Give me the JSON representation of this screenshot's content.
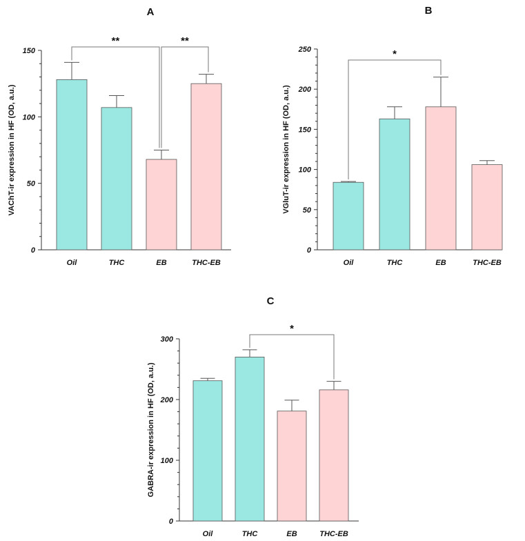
{
  "colors": {
    "teal": "#9be8e2",
    "pink": "#ffd4d4",
    "axis": "#333333"
  },
  "chart_data": [
    {
      "type": "bar",
      "panel_label": "A",
      "ylabel": "VAChT-ir expression in HF (OD, a.u.)",
      "categories": [
        "Oil",
        "THC",
        "EB",
        "THC-EB"
      ],
      "values": [
        128,
        107,
        68,
        125
      ],
      "errors": [
        13,
        9,
        7,
        7
      ],
      "bar_colors": [
        "teal",
        "teal",
        "pink",
        "pink"
      ],
      "ylim": [
        0,
        150
      ],
      "yticks": [
        0,
        50,
        100,
        150
      ],
      "significance": [
        {
          "from": 0,
          "to": 2,
          "label": "**"
        },
        {
          "from": 2,
          "to": 3,
          "label": "**"
        }
      ]
    },
    {
      "type": "bar",
      "panel_label": "B",
      "ylabel": "VGluT-ir expression in HF (OD, a.u.)",
      "categories": [
        "Oil",
        "THC",
        "EB",
        "THC-EB"
      ],
      "values": [
        84,
        163,
        178,
        106
      ],
      "errors": [
        1,
        15,
        37,
        5
      ],
      "bar_colors": [
        "teal",
        "teal",
        "pink",
        "pink"
      ],
      "ylim": [
        0,
        250
      ],
      "yticks": [
        0,
        50,
        100,
        150,
        200,
        250
      ],
      "significance": [
        {
          "from": 0,
          "to": 2,
          "label": "*"
        }
      ]
    },
    {
      "type": "bar",
      "panel_label": "C",
      "ylabel": "GABRA-ir expression in HF (OD, a.u.)",
      "categories": [
        "Oil",
        "THC",
        "EB",
        "THC-EB"
      ],
      "values": [
        231,
        270,
        181,
        216
      ],
      "errors": [
        4,
        12,
        18,
        14
      ],
      "bar_colors": [
        "teal",
        "teal",
        "pink",
        "pink"
      ],
      "ylim": [
        0,
        300
      ],
      "yticks": [
        0,
        100,
        200,
        300
      ],
      "significance": [
        {
          "from": 1,
          "to": 3,
          "label": "*"
        }
      ]
    }
  ]
}
